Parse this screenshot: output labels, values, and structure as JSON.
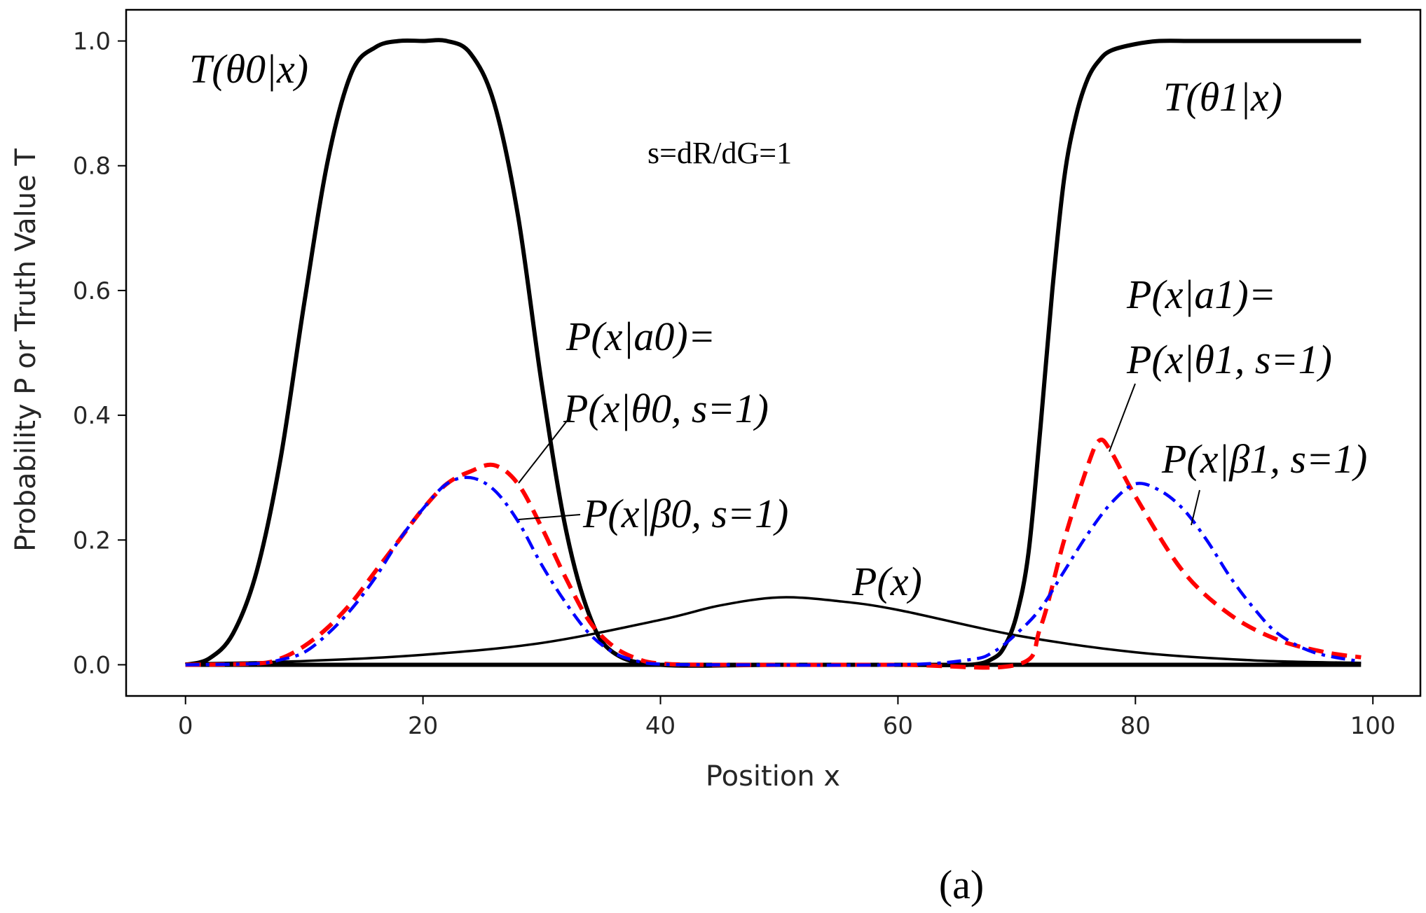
{
  "chart_data": {
    "type": "line",
    "title": "",
    "xlabel": "Position x",
    "ylabel": "Probability P or Truth Value T",
    "xlim": [
      -5,
      104
    ],
    "ylim": [
      -0.05,
      1.05
    ],
    "xticks": [
      0,
      20,
      40,
      60,
      80,
      100
    ],
    "yticks": [
      0.0,
      0.2,
      0.4,
      0.6,
      0.8,
      1.0
    ],
    "xtick_labels": [
      "0",
      "20",
      "40",
      "60",
      "80",
      "100"
    ],
    "ytick_labels": [
      "0.0",
      "0.2",
      "0.4",
      "0.6",
      "0.8",
      "1.0"
    ],
    "grid": false,
    "series": [
      {
        "name": "T(θ0|x)",
        "color": "#000000",
        "style": "solid-thick",
        "x": [
          0,
          2,
          4,
          6,
          8,
          10,
          12,
          14,
          16,
          18,
          20,
          22,
          24,
          26,
          28,
          30,
          32,
          34,
          36,
          40,
          50,
          60,
          70,
          80,
          90,
          99
        ],
        "values": [
          0.0,
          0.01,
          0.05,
          0.15,
          0.33,
          0.58,
          0.81,
          0.95,
          0.99,
          1.0,
          1.0,
          1.0,
          0.98,
          0.9,
          0.72,
          0.45,
          0.22,
          0.08,
          0.02,
          0.0,
          0.0,
          0.0,
          0.0,
          0.0,
          0.0,
          0.0
        ]
      },
      {
        "name": "T(θ1|x)",
        "color": "#000000",
        "style": "solid-thick",
        "x": [
          0,
          20,
          40,
          60,
          66,
          68,
          69,
          70,
          71,
          72,
          73,
          74,
          75,
          76,
          77,
          78,
          80,
          82,
          85,
          90,
          99
        ],
        "values": [
          0.0,
          0.0,
          0.0,
          0.0,
          0.0,
          0.01,
          0.03,
          0.08,
          0.18,
          0.38,
          0.6,
          0.78,
          0.88,
          0.94,
          0.97,
          0.985,
          0.995,
          1.0,
          1.0,
          1.0,
          1.0
        ]
      },
      {
        "name": "P(x)",
        "color": "#000000",
        "style": "solid-thin",
        "x": [
          0,
          10,
          20,
          30,
          40,
          45,
          50,
          55,
          60,
          70,
          80,
          90,
          99
        ],
        "values": [
          0.002,
          0.006,
          0.016,
          0.035,
          0.072,
          0.095,
          0.108,
          0.102,
          0.088,
          0.047,
          0.02,
          0.007,
          0.003
        ]
      },
      {
        "name": "P(x|a0)",
        "color": "#ff0000",
        "style": "dashed",
        "x": [
          0,
          6,
          8,
          10,
          12,
          14,
          16,
          18,
          20,
          22,
          24,
          26,
          28,
          30,
          32,
          34,
          36,
          38,
          40,
          45,
          60,
          70,
          72,
          74,
          76,
          77,
          78,
          80,
          84,
          88,
          92,
          96,
          99
        ],
        "values": [
          0.0,
          0.002,
          0.01,
          0.03,
          0.06,
          0.1,
          0.15,
          0.2,
          0.25,
          0.29,
          0.31,
          0.32,
          0.29,
          0.22,
          0.14,
          0.07,
          0.03,
          0.01,
          0.002,
          0.0,
          0.0,
          0.0,
          0.06,
          0.2,
          0.32,
          0.36,
          0.34,
          0.27,
          0.15,
          0.08,
          0.04,
          0.02,
          0.012
        ]
      },
      {
        "name": "P(x|β0)",
        "color": "#0000ff",
        "style": "dashdot",
        "x": [
          0,
          6,
          8,
          10,
          12,
          14,
          16,
          18,
          20,
          22,
          24,
          26,
          28,
          30,
          32,
          34,
          36,
          38,
          40,
          45,
          60,
          66,
          68,
          70,
          72,
          74,
          76,
          78,
          80,
          82,
          84,
          86,
          88,
          90,
          92,
          95,
          99
        ],
        "values": [
          0.0,
          0.002,
          0.008,
          0.02,
          0.05,
          0.09,
          0.14,
          0.2,
          0.25,
          0.29,
          0.3,
          0.28,
          0.23,
          0.16,
          0.1,
          0.05,
          0.02,
          0.006,
          0.001,
          0.0,
          0.0,
          0.008,
          0.02,
          0.05,
          0.09,
          0.15,
          0.21,
          0.26,
          0.29,
          0.28,
          0.25,
          0.2,
          0.14,
          0.09,
          0.05,
          0.02,
          0.005
        ]
      }
    ],
    "annotations": [
      "T(θ0|x)",
      "T(θ1|x)",
      "s=dR/dG=1",
      "P(x|a0)=",
      "P(x|θ0, s=1)",
      "P(x|β0, s=1)",
      "P(x|a1)=",
      "P(x|θ1, s=1)",
      "P(x|β1, s=1)",
      "P(x)"
    ],
    "caption": "(a)"
  }
}
